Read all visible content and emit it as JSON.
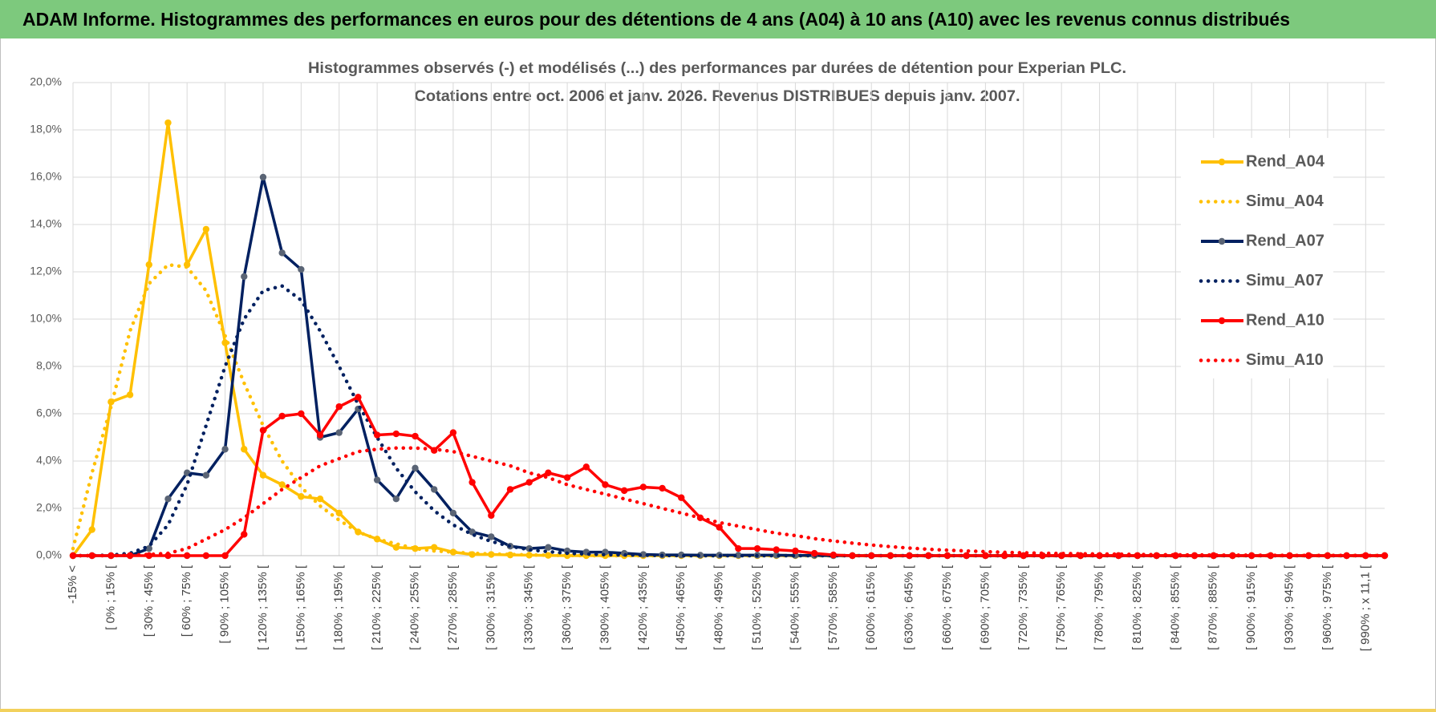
{
  "header": {
    "title": "ADAM Informe. Histogrammes des performances en euros pour des détentions de 4 ans (A04) à 10 ans (A10) avec les revenus connus distribués"
  },
  "chart_data": {
    "type": "line",
    "title": "Histogrammes observés (-) et modélisés (...) des performances par durées de détention pour Experian PLC.",
    "subtitle": "Cotations entre oct. 2006 et janv. 2026.  Revenus DISTRIBUES depuis janv. 2007.",
    "categories": [
      "-15% <",
      null,
      "[ 0% ; 15% [",
      null,
      "[ 30% ; 45% [",
      null,
      "[ 60% ; 75% [",
      null,
      "[ 90% ; 105% [",
      null,
      "[ 120% ; 135% [",
      null,
      "[ 150% ; 165% [",
      null,
      "[ 180% ; 195% [",
      null,
      "[ 210% ; 225% [",
      null,
      "[ 240% ; 255% [",
      null,
      "[ 270% ; 285% [",
      null,
      "[ 300% ; 315% [",
      null,
      "[ 330% ; 345% [",
      null,
      "[ 360% ; 375% [",
      null,
      "[ 390% ; 405% [",
      null,
      "[ 420% ; 435% [",
      null,
      "[ 450% ; 465% [",
      null,
      "[ 480% ; 495% [",
      null,
      "[ 510% ; 525% [",
      null,
      "[ 540% ; 555% [",
      null,
      "[ 570% ; 585% [",
      null,
      "[ 600% ; 615% [",
      null,
      "[ 630% ; 645% [",
      null,
      "[ 660% ; 675% [",
      null,
      "[ 690% ; 705% [",
      null,
      "[ 720% ; 735% [",
      null,
      "[ 750% ; 765% [",
      null,
      "[ 780% ; 795% [",
      null,
      "[ 810% ; 825% [",
      null,
      "[ 840% ; 855% [",
      null,
      "[ 870% ; 885% [",
      null,
      "[ 900% ; 915% [",
      null,
      "[ 930% ; 945% [",
      null,
      "[ 960% ; 975% [",
      null,
      "[ 990% ; x 11,1 [",
      null
    ],
    "series": [
      {
        "name": "Rend_A04",
        "color": "#FFC000",
        "style": "solid",
        "marker": true,
        "values": [
          0,
          1.1,
          6.5,
          6.8,
          12.3,
          18.3,
          12.3,
          13.8,
          9.0,
          4.5,
          3.4,
          3.0,
          2.5,
          2.4,
          1.8,
          1.0,
          0.7,
          0.35,
          0.3,
          0.35,
          0.15,
          0.05,
          0.05,
          0.03,
          0.02,
          0.01,
          0,
          0,
          0,
          0,
          0,
          0,
          0,
          0,
          0,
          0,
          0,
          0,
          0,
          0,
          0,
          0,
          0,
          0,
          0,
          0,
          0,
          0,
          0,
          0,
          0,
          0,
          0,
          0,
          0,
          0,
          0,
          0,
          0,
          0,
          0,
          0,
          0,
          0,
          0,
          0,
          0,
          0,
          0,
          0
        ]
      },
      {
        "name": "Simu_A04",
        "color": "#FFC000",
        "style": "dotted",
        "marker": false,
        "values": [
          0.3,
          3.5,
          6.3,
          9.5,
          11.5,
          12.3,
          12.2,
          11.2,
          9.3,
          7.3,
          5.5,
          4.0,
          2.9,
          2.1,
          1.5,
          1.0,
          0.7,
          0.5,
          0.3,
          0.2,
          0.15,
          0.1,
          0.07,
          0.05,
          0.03,
          0.02,
          0.01,
          0,
          0,
          0,
          0,
          0,
          0,
          0,
          0,
          0,
          0,
          0,
          0,
          0,
          0,
          0,
          0,
          0,
          0,
          0,
          0,
          0,
          0,
          0,
          0,
          0,
          0,
          0,
          0,
          0,
          0,
          0,
          0,
          0,
          0,
          0,
          0,
          0,
          0,
          0,
          0,
          0,
          0,
          0
        ]
      },
      {
        "name": "Rend_A07",
        "color": "#002060",
        "marker_color": "#5a6475",
        "style": "solid",
        "marker": true,
        "values": [
          0,
          0,
          0,
          0,
          0.3,
          2.4,
          3.5,
          3.4,
          4.5,
          11.8,
          16.0,
          12.8,
          12.1,
          5.0,
          5.2,
          6.2,
          3.2,
          2.4,
          3.7,
          2.8,
          1.8,
          1.0,
          0.8,
          0.4,
          0.3,
          0.35,
          0.2,
          0.15,
          0.15,
          0.1,
          0.05,
          0.03,
          0.03,
          0.02,
          0.02,
          0.02,
          0.02,
          0.02,
          0.01,
          0.01,
          0,
          0,
          0,
          0,
          0,
          0,
          0,
          0,
          0,
          0,
          0,
          0,
          0,
          0,
          0,
          0,
          0,
          0,
          0,
          0,
          0,
          0,
          0,
          0,
          0,
          0,
          0,
          0,
          0,
          0
        ]
      },
      {
        "name": "Simu_A07",
        "color": "#002060",
        "style": "dotted",
        "marker": false,
        "values": [
          0,
          0,
          0.02,
          0.1,
          0.4,
          1.3,
          3.0,
          5.5,
          8.0,
          10.0,
          11.2,
          11.4,
          10.8,
          9.5,
          8.0,
          6.4,
          5.0,
          3.7,
          2.7,
          1.9,
          1.3,
          0.9,
          0.6,
          0.4,
          0.25,
          0.17,
          0.1,
          0.07,
          0.04,
          0.03,
          0.02,
          0.01,
          0,
          0,
          0,
          0,
          0,
          0,
          0,
          0,
          0,
          0,
          0,
          0,
          0,
          0,
          0,
          0,
          0,
          0,
          0,
          0,
          0,
          0,
          0,
          0,
          0,
          0,
          0,
          0,
          0,
          0,
          0,
          0,
          0,
          0,
          0,
          0,
          0,
          0
        ]
      },
      {
        "name": "Rend_A10",
        "color": "#FF0000",
        "style": "solid",
        "marker": true,
        "values": [
          0,
          0,
          0,
          0,
          0,
          0,
          0,
          0,
          0,
          0.9,
          5.3,
          5.9,
          6.0,
          5.1,
          6.3,
          6.7,
          5.1,
          5.15,
          5.05,
          4.45,
          5.2,
          3.1,
          1.7,
          2.8,
          3.1,
          3.5,
          3.3,
          3.75,
          3.0,
          2.75,
          2.9,
          2.85,
          2.45,
          1.6,
          1.2,
          0.3,
          0.3,
          0.25,
          0.2,
          0.1,
          0.03,
          0,
          0,
          0,
          0,
          0,
          0,
          0,
          0,
          0,
          0,
          0,
          0,
          0,
          0,
          0,
          0,
          0,
          0,
          0,
          0,
          0,
          0,
          0,
          0,
          0,
          0,
          0,
          0,
          0
        ]
      },
      {
        "name": "Simu_A10",
        "color": "#FF0000",
        "style": "dotted",
        "marker": false,
        "values": [
          0,
          0,
          0,
          0.02,
          0.05,
          0.1,
          0.3,
          0.7,
          1.1,
          1.6,
          2.2,
          2.8,
          3.3,
          3.8,
          4.1,
          4.4,
          4.5,
          4.55,
          4.55,
          4.5,
          4.4,
          4.2,
          4.0,
          3.8,
          3.5,
          3.3,
          3.0,
          2.8,
          2.6,
          2.4,
          2.2,
          2.0,
          1.8,
          1.6,
          1.4,
          1.25,
          1.1,
          0.95,
          0.85,
          0.72,
          0.62,
          0.53,
          0.45,
          0.38,
          0.32,
          0.27,
          0.23,
          0.2,
          0.17,
          0.14,
          0.12,
          0.1,
          0.09,
          0.08,
          0.07,
          0.06,
          0.05,
          0.04,
          0.035,
          0.03,
          0.025,
          0.02,
          0.02,
          0.015,
          0.01,
          0.01,
          0.01,
          0.01,
          0.005,
          0.005
        ]
      }
    ],
    "ylim": [
      0,
      20
    ],
    "yticks": [
      {
        "value": 0,
        "label": "0,0%"
      },
      {
        "value": 2,
        "label": "2,0%"
      },
      {
        "value": 4,
        "label": "4,0%"
      },
      {
        "value": 6,
        "label": "6,0%"
      },
      {
        "value": 8,
        "label": "8,0%"
      },
      {
        "value": 10,
        "label": "10,0%"
      },
      {
        "value": 12,
        "label": "12,0%"
      },
      {
        "value": 14,
        "label": "14,0%"
      },
      {
        "value": 16,
        "label": "16,0%"
      },
      {
        "value": 18,
        "label": "18,0%"
      },
      {
        "value": 20,
        "label": "20,0%"
      }
    ],
    "grid": true,
    "legend": "right"
  }
}
